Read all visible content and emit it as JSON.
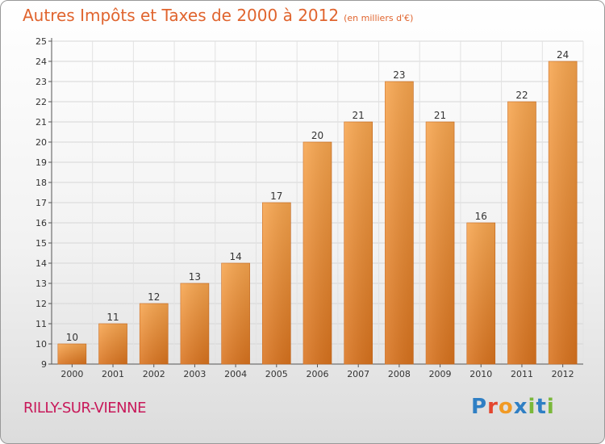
{
  "title": "Autres Impôts et Taxes de 2000 à 2012",
  "subtitle": "(en milliers d'€)",
  "town": "RILLY-SUR-VIENNE",
  "logo": {
    "p": "P",
    "r": "r",
    "o": "o",
    "x": "x",
    "i1": "i",
    "t": "t",
    "i2": "i"
  },
  "colors": {
    "bar_top": "#f7a54e",
    "bar_bottom": "#d9731e",
    "title": "#e0642e",
    "town": "#c8195a"
  },
  "chart_data": {
    "type": "bar",
    "categories": [
      "2000",
      "2001",
      "2002",
      "2003",
      "2004",
      "2005",
      "2006",
      "2007",
      "2008",
      "2009",
      "2010",
      "2011",
      "2012"
    ],
    "values": [
      10,
      11,
      12,
      13,
      14,
      17,
      20,
      21,
      23,
      21,
      16,
      22,
      24
    ],
    "data_labels": [
      "10",
      "11",
      "12",
      "13",
      "14",
      "17",
      "20",
      "21",
      "23",
      "21",
      "16",
      "22",
      "24"
    ],
    "y_ticks": [
      9,
      10,
      11,
      12,
      13,
      14,
      15,
      16,
      17,
      18,
      19,
      20,
      21,
      22,
      23,
      24,
      25
    ],
    "ylim": [
      9,
      25
    ],
    "grid": true,
    "title": "Autres Impôts et Taxes de 2000 à 2012",
    "xlabel": "",
    "ylabel": ""
  }
}
